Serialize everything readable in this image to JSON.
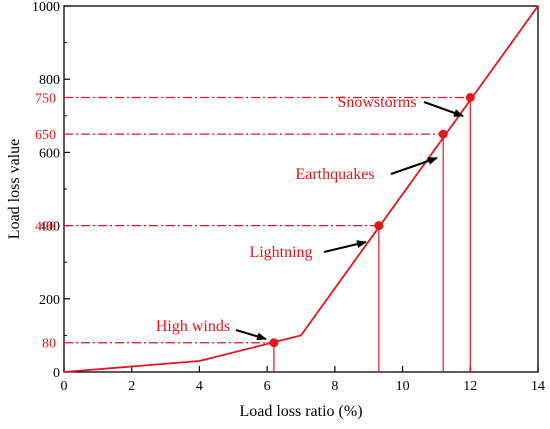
{
  "chart_data": {
    "type": "line",
    "title": "",
    "xlabel": "Load loss ratio (%)",
    "ylabel": "Load loss value",
    "xlim": [
      0,
      14
    ],
    "ylim": [
      0,
      1000
    ],
    "grid": false,
    "x_ticks": [
      0,
      2,
      4,
      6,
      8,
      10,
      12,
      14
    ],
    "y_ticks": [
      0,
      200,
      400,
      600,
      800,
      1000
    ],
    "series": [
      {
        "x": [
          0,
          4,
          7,
          14
        ],
        "y": [
          0,
          30,
          100,
          1000
        ],
        "color": "#e8141c"
      }
    ],
    "highlight_points": [
      {
        "label": "High winds",
        "x": 6.2,
        "y": 80,
        "value_label": "80"
      },
      {
        "label": "Lightning",
        "x": 9.3,
        "y": 400,
        "value_label": "400"
      },
      {
        "label": "Earthquakes",
        "x": 11.2,
        "y": 650,
        "value_label": "650"
      },
      {
        "label": "Snowstorms",
        "x": 12.0,
        "y": 750,
        "value_label": "750"
      }
    ],
    "accent_color": "#e8141c"
  }
}
